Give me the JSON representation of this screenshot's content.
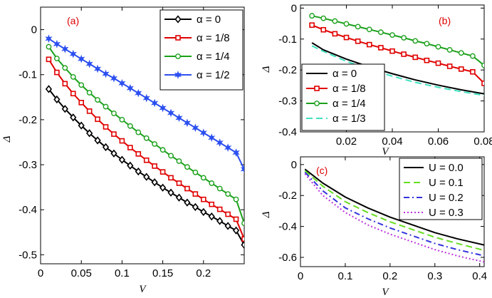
{
  "chart_data": [
    {
      "type": "line",
      "panel_label": "(a)",
      "xlabel": "V",
      "ylabel": "Δ",
      "xlim": [
        0,
        0.25
      ],
      "ylim": [
        -0.52,
        0.05
      ],
      "xticks": [
        0,
        0.05,
        0.1,
        0.15,
        0.2
      ],
      "xtick_labels": [
        "0",
        "0.05",
        "0.1",
        "0.15",
        "0.2"
      ],
      "yticks": [
        0,
        -0.1,
        -0.2,
        -0.3,
        -0.4,
        -0.5
      ],
      "ytick_labels": [
        "0",
        "-0.1",
        "-0.2",
        "-0.3",
        "-0.4",
        "-0.5"
      ],
      "legend_position": "top-right",
      "series": [
        {
          "name": "α = 0",
          "color": "#000000",
          "marker": "diamond",
          "x_start": 0.01,
          "x_step": 0.01,
          "x_end": 0.25,
          "values": [
            -0.132,
            -0.155,
            -0.176,
            -0.195,
            -0.213,
            -0.23,
            -0.246,
            -0.261,
            -0.275,
            -0.289,
            -0.302,
            -0.315,
            -0.327,
            -0.339,
            -0.351,
            -0.362,
            -0.373,
            -0.384,
            -0.394,
            -0.405,
            -0.415,
            -0.425,
            -0.436,
            -0.446,
            -0.478
          ]
        },
        {
          "name": "α = 1/8",
          "color": "#e00000",
          "marker": "square",
          "x_start": 0.01,
          "x_step": 0.01,
          "x_end": 0.25,
          "values": [
            -0.066,
            -0.095,
            -0.12,
            -0.142,
            -0.162,
            -0.181,
            -0.199,
            -0.216,
            -0.232,
            -0.247,
            -0.262,
            -0.276,
            -0.29,
            -0.303,
            -0.316,
            -0.329,
            -0.341,
            -0.353,
            -0.365,
            -0.377,
            -0.388,
            -0.399,
            -0.41,
            -0.421,
            -0.465
          ]
        },
        {
          "name": "α = 1/4",
          "color": "#1aa01a",
          "marker": "circle",
          "x_start": 0.01,
          "x_step": 0.01,
          "x_end": 0.25,
          "values": [
            -0.038,
            -0.064,
            -0.085,
            -0.105,
            -0.123,
            -0.14,
            -0.156,
            -0.171,
            -0.186,
            -0.2,
            -0.214,
            -0.228,
            -0.241,
            -0.254,
            -0.267,
            -0.28,
            -0.292,
            -0.305,
            -0.317,
            -0.329,
            -0.341,
            -0.353,
            -0.365,
            -0.377,
            -0.43
          ]
        },
        {
          "name": "α = 1/2",
          "color": "#2b4ff0",
          "marker": "star",
          "x_start": 0.01,
          "x_step": 0.01,
          "x_end": 0.25,
          "values": [
            -0.02,
            -0.032,
            -0.043,
            -0.054,
            -0.065,
            -0.076,
            -0.087,
            -0.098,
            -0.108,
            -0.119,
            -0.13,
            -0.141,
            -0.152,
            -0.163,
            -0.174,
            -0.185,
            -0.196,
            -0.207,
            -0.218,
            -0.229,
            -0.24,
            -0.251,
            -0.262,
            -0.273,
            -0.31
          ]
        }
      ]
    },
    {
      "type": "line",
      "panel_label": "(b)",
      "xlabel": "V",
      "ylabel": "Δ",
      "xlim": [
        0,
        0.08
      ],
      "ylim": [
        -0.4,
        0.01
      ],
      "xticks": [
        0.02,
        0.04,
        0.06,
        0.08
      ],
      "xtick_labels": [
        "0.02",
        "0.04",
        "0.06",
        "0.08"
      ],
      "yticks": [
        0,
        -0.1,
        -0.2,
        -0.3,
        -0.4
      ],
      "ytick_labels": [
        "0",
        "-0.1",
        "-0.2",
        "-0.3",
        "-0.4"
      ],
      "legend_position": "bottom-left",
      "series": [
        {
          "name": "α = 0",
          "color": "#000000",
          "style": "solid",
          "x": [
            0.005,
            0.01,
            0.02,
            0.03,
            0.04,
            0.05,
            0.06,
            0.07,
            0.08
          ],
          "values": [
            -0.112,
            -0.135,
            -0.165,
            -0.19,
            -0.212,
            -0.232,
            -0.249,
            -0.264,
            -0.277
          ]
        },
        {
          "name": "α = 1/8",
          "color": "#e00000",
          "marker": "square",
          "x": [
            0.005,
            0.01,
            0.015,
            0.02,
            0.025,
            0.03,
            0.035,
            0.04,
            0.045,
            0.05,
            0.055,
            0.06,
            0.065,
            0.07,
            0.075,
            0.08
          ],
          "values": [
            -0.055,
            -0.07,
            -0.083,
            -0.095,
            -0.107,
            -0.118,
            -0.128,
            -0.139,
            -0.149,
            -0.159,
            -0.169,
            -0.178,
            -0.188,
            -0.197,
            -0.206,
            -0.243
          ]
        },
        {
          "name": "α = 1/4",
          "color": "#1aa01a",
          "marker": "circle",
          "x": [
            0.005,
            0.01,
            0.015,
            0.02,
            0.025,
            0.03,
            0.035,
            0.04,
            0.045,
            0.05,
            0.055,
            0.06,
            0.065,
            0.07,
            0.075,
            0.08
          ],
          "values": [
            -0.025,
            -0.033,
            -0.042,
            -0.051,
            -0.06,
            -0.069,
            -0.078,
            -0.087,
            -0.096,
            -0.106,
            -0.115,
            -0.125,
            -0.135,
            -0.145,
            -0.155,
            -0.185
          ]
        },
        {
          "name": "α = 1/3",
          "color": "#40e0c0",
          "style": "dashed",
          "x": [
            0.005,
            0.01,
            0.02,
            0.03,
            0.04,
            0.05,
            0.06,
            0.07,
            0.08
          ],
          "values": [
            -0.122,
            -0.14,
            -0.172,
            -0.198,
            -0.22,
            -0.24,
            -0.256,
            -0.27,
            -0.282
          ]
        }
      ]
    },
    {
      "type": "line",
      "panel_label": "(c)",
      "xlabel": "V",
      "ylabel": "Δ",
      "xlim": [
        0,
        0.41
      ],
      "ylim": [
        -0.66,
        0.05
      ],
      "xticks": [
        0,
        0.1,
        0.2,
        0.3,
        0.4
      ],
      "xtick_labels": [
        "0",
        "0.1",
        "0.2",
        "0.3",
        "0.4"
      ],
      "yticks": [
        0,
        -0.2,
        -0.4,
        -0.6
      ],
      "ytick_labels": [
        "0",
        "-0.2",
        "-0.4",
        "-0.6"
      ],
      "legend_position": "top-right",
      "series": [
        {
          "name": "U = 0.0",
          "color": "#000000",
          "style": "solid",
          "x": [
            0.01,
            0.05,
            0.1,
            0.15,
            0.2,
            0.25,
            0.3,
            0.35,
            0.41
          ],
          "values": [
            -0.03,
            -0.12,
            -0.21,
            -0.28,
            -0.34,
            -0.39,
            -0.44,
            -0.48,
            -0.52
          ]
        },
        {
          "name": "U = 0.1",
          "color": "#66dd22",
          "style": "dashed",
          "x": [
            0.01,
            0.05,
            0.1,
            0.15,
            0.2,
            0.25,
            0.3,
            0.35,
            0.41
          ],
          "values": [
            -0.04,
            -0.14,
            -0.24,
            -0.31,
            -0.37,
            -0.42,
            -0.47,
            -0.51,
            -0.555
          ]
        },
        {
          "name": "U = 0.2",
          "color": "#3333dd",
          "style": "dashdot",
          "x": [
            0.01,
            0.05,
            0.1,
            0.15,
            0.2,
            0.25,
            0.3,
            0.35,
            0.41
          ],
          "values": [
            -0.05,
            -0.17,
            -0.28,
            -0.35,
            -0.41,
            -0.46,
            -0.51,
            -0.55,
            -0.59
          ]
        },
        {
          "name": "U = 0.3",
          "color": "#bb33dd",
          "style": "dotted",
          "x": [
            0.01,
            0.05,
            0.1,
            0.15,
            0.2,
            0.25,
            0.3,
            0.35,
            0.41
          ],
          "values": [
            -0.06,
            -0.2,
            -0.31,
            -0.39,
            -0.45,
            -0.5,
            -0.55,
            -0.59,
            -0.63
          ]
        }
      ]
    }
  ]
}
